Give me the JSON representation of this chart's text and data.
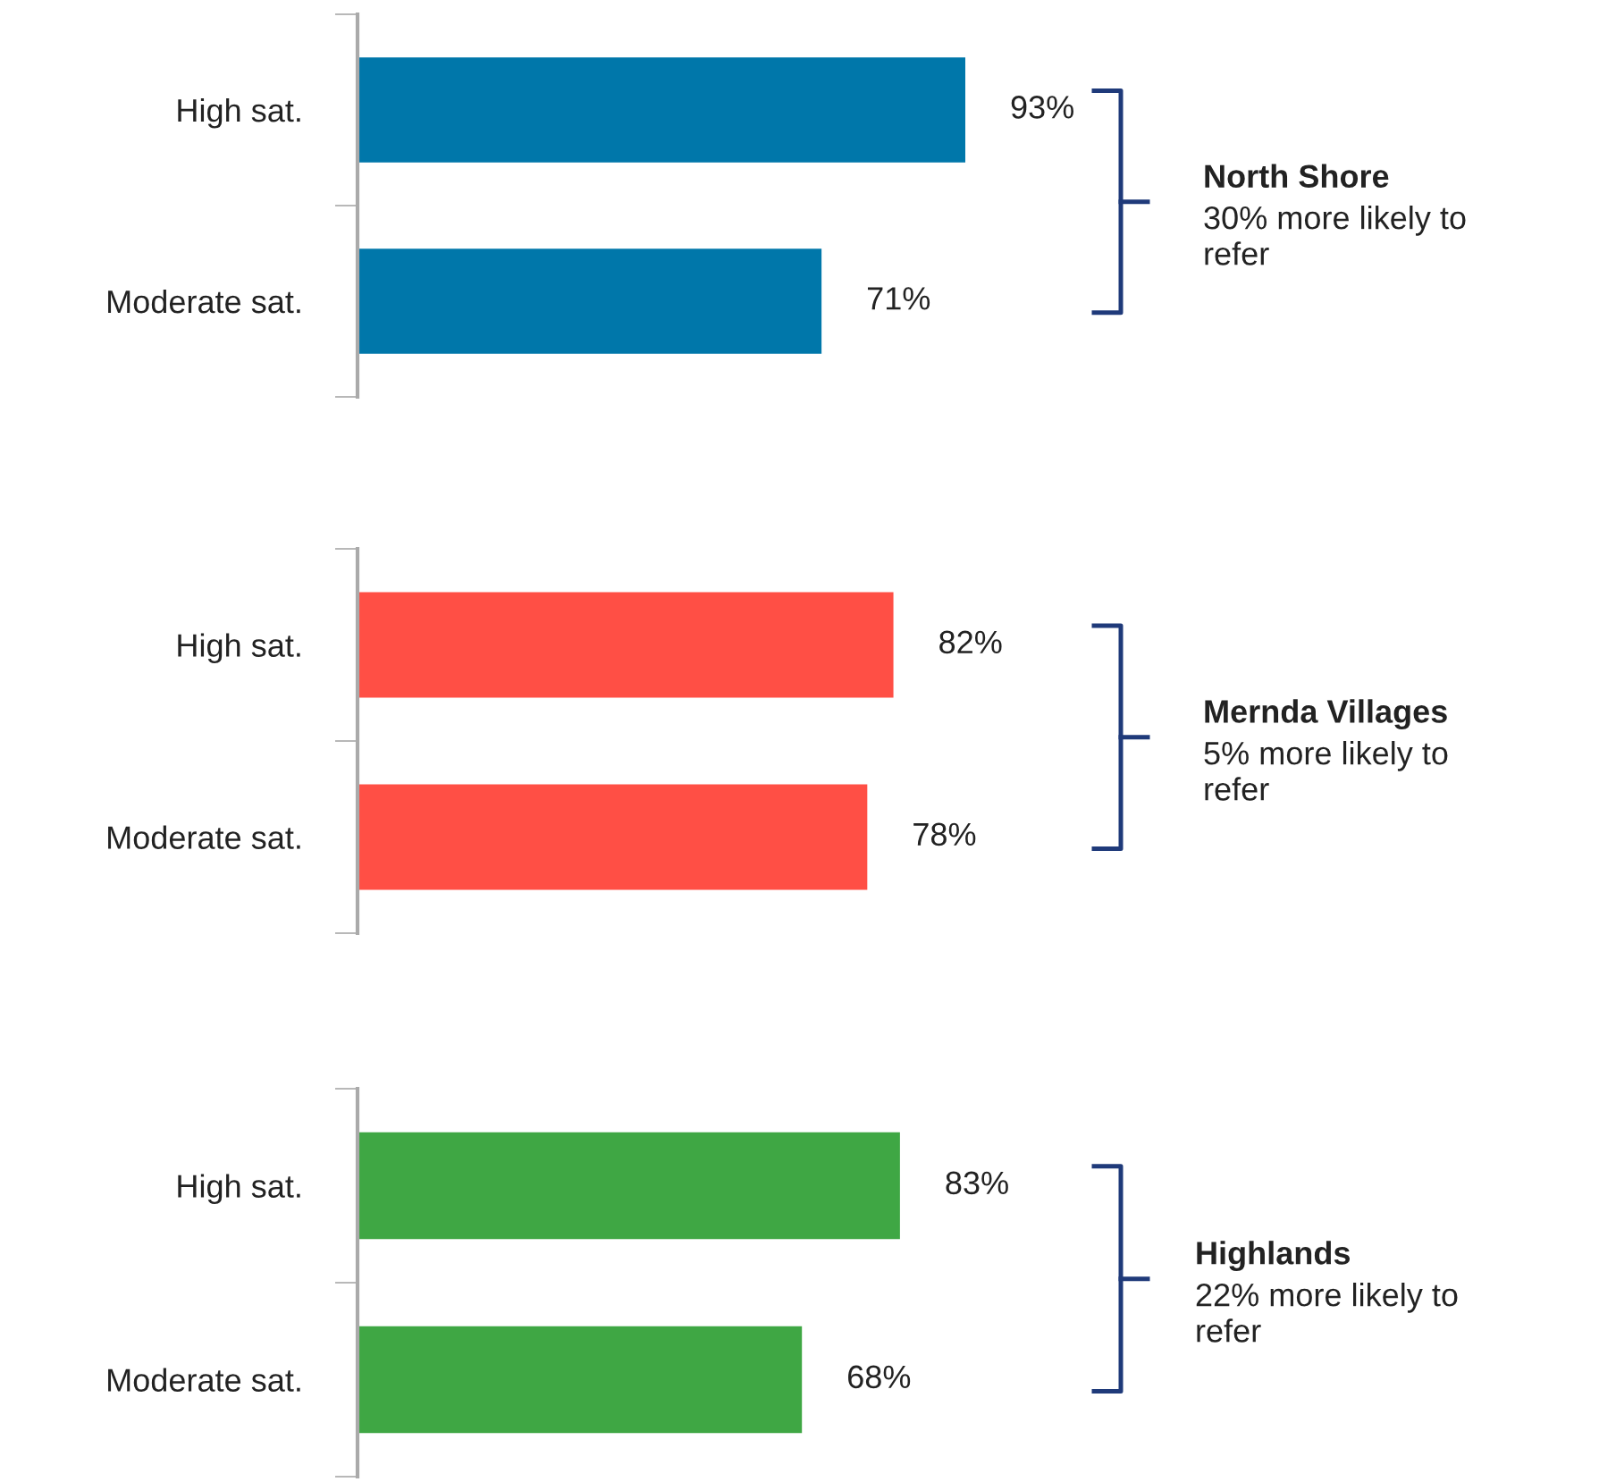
{
  "chart_data": [
    {
      "type": "bar",
      "orientation": "horizontal",
      "categories": [
        "High sat.",
        "Moderate sat."
      ],
      "values": [
        93,
        71
      ],
      "color": "#0077aa",
      "value_labels": [
        "93%",
        "71%"
      ],
      "annotations": [
        "North Shore",
        "30% more likely to\nrefer"
      ]
    },
    {
      "type": "bar",
      "orientation": "horizontal",
      "categories": [
        "High sat.",
        "Moderate sat."
      ],
      "values": [
        82,
        78
      ],
      "color": "#ff4f45",
      "value_labels": [
        "82%",
        "78%"
      ],
      "annotations": [
        "Mernda Villages",
        "5% more likely to\nrefer"
      ]
    },
    {
      "type": "bar",
      "orientation": "horizontal",
      "categories": [
        "High sat.",
        "Moderate sat."
      ],
      "values": [
        83,
        68
      ],
      "color": "#3fa744",
      "value_labels": [
        "83%",
        "68%"
      ],
      "annotations": [
        "Highlands",
        "22% more likely to\nrefer"
      ]
    }
  ]
}
